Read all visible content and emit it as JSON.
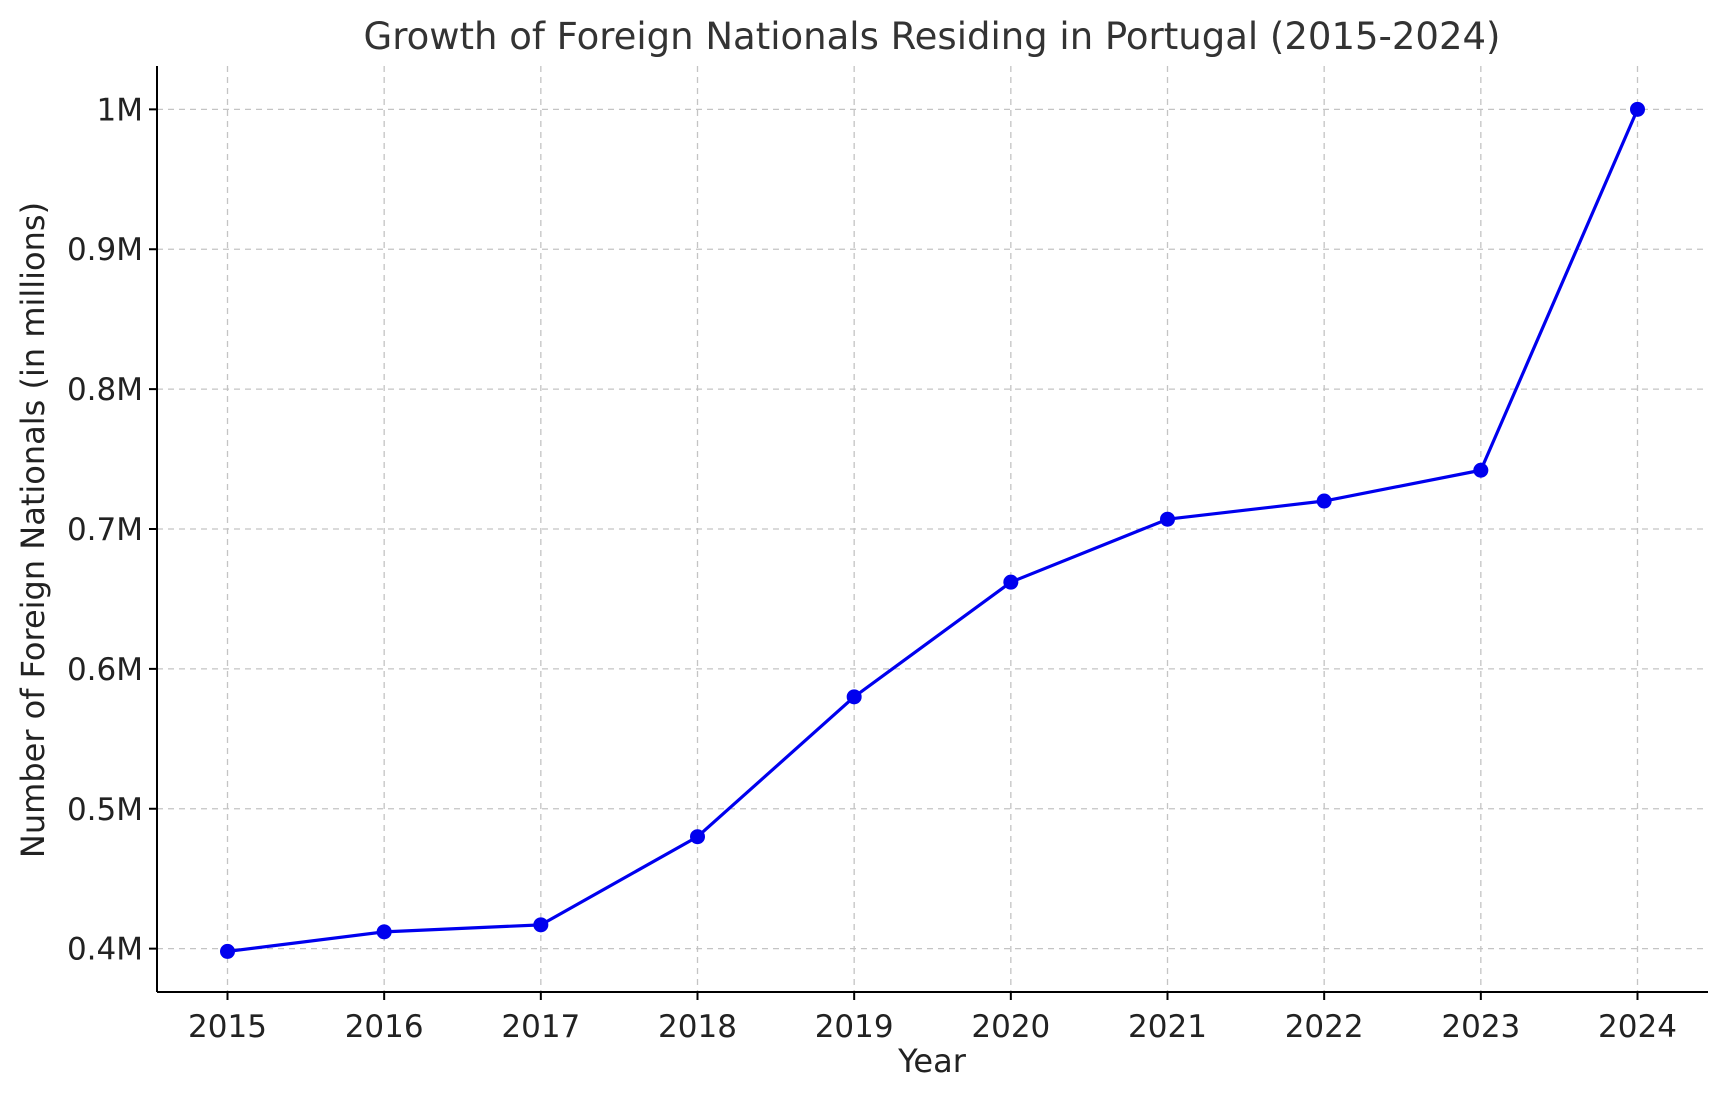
{
  "chart_data": {
    "type": "line",
    "title": "Growth of Foreign Nationals Residing in Portugal (2015-2024)",
    "xlabel": "Year",
    "ylabel": "Number of Foreign Nationals (in millions)",
    "x": [
      2015,
      2016,
      2017,
      2018,
      2019,
      2020,
      2021,
      2022,
      2023,
      2024
    ],
    "x_tick_labels": [
      "2015",
      "2016",
      "2017",
      "2018",
      "2019",
      "2020",
      "2021",
      "2022",
      "2023",
      "2024"
    ],
    "series": [
      {
        "values": [
          0.398,
          0.412,
          0.417,
          0.48,
          0.58,
          0.662,
          0.707,
          0.72,
          0.742,
          1.0
        ],
        "color": "#0000ee",
        "marker": "circle"
      }
    ],
    "y_ticks": [
      0.4,
      0.5,
      0.6,
      0.7,
      0.8,
      0.9,
      1.0
    ],
    "y_tick_labels": [
      "0.4M",
      "0.5M",
      "0.6M",
      "0.7M",
      "0.8M",
      "0.9M",
      "1M"
    ],
    "xlim": [
      2014.55,
      2024.45
    ],
    "ylim": [
      0.369,
      1.031
    ],
    "grid": true,
    "grid_style": "dashed",
    "legend": "none"
  }
}
